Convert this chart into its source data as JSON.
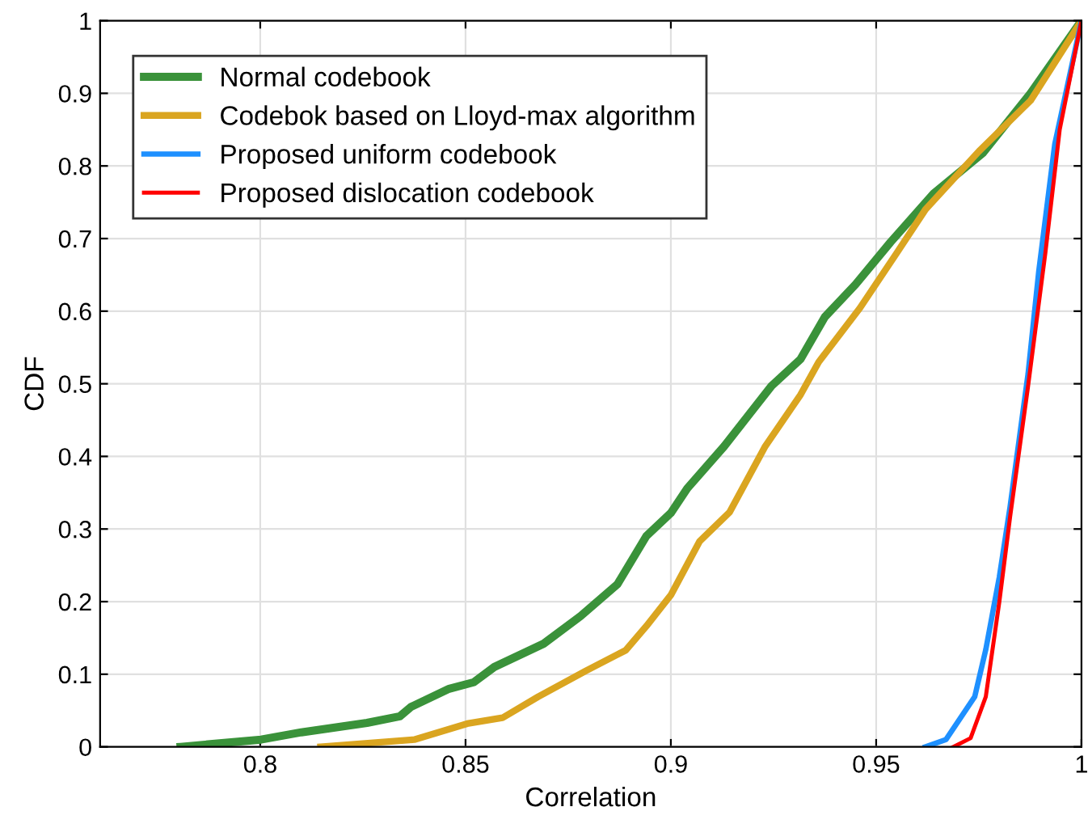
{
  "chart_data": {
    "type": "line",
    "xlabel": "Correlation",
    "ylabel": "CDF",
    "xlim": [
      0.761,
      1
    ],
    "xticks": [
      0.8,
      0.85,
      0.9,
      0.95,
      1
    ],
    "ylim": [
      0,
      1
    ],
    "yticks": [
      0,
      0.1,
      0.2,
      0.3,
      0.4,
      0.5,
      0.6,
      0.7,
      0.8,
      0.9,
      1
    ],
    "grid": true,
    "legend": "top left",
    "series": [
      {
        "name": "Normal codebook",
        "color": "#3a923a",
        "x": [
          0.7806,
          0.8002,
          0.81,
          0.826,
          0.834,
          0.8367,
          0.846,
          0.852,
          0.857,
          0.869,
          0.878,
          0.887,
          0.894,
          0.9,
          0.904,
          0.913,
          0.9245,
          0.9316,
          0.9375,
          0.945,
          0.9535,
          0.964,
          0.976,
          0.9876,
          1
        ],
        "values": [
          0,
          0.01,
          0.02,
          0.033,
          0.042,
          0.055,
          0.08,
          0.089,
          0.11,
          0.142,
          0.18,
          0.224,
          0.29,
          0.322,
          0.356,
          0.414,
          0.497,
          0.534,
          0.592,
          0.637,
          0.695,
          0.762,
          0.818,
          0.9,
          1
        ]
      },
      {
        "name": "Codebok based on Lloyd-max algorithm",
        "color": "#daa520",
        "x": [
          0.8147,
          0.8375,
          0.8504,
          0.859,
          0.8677,
          0.8794,
          0.889,
          0.894,
          0.9,
          0.907,
          0.9143,
          0.923,
          0.9316,
          0.936,
          0.946,
          0.955,
          0.962,
          0.975,
          0.9876,
          1
        ],
        "values": [
          0,
          0.01,
          0.032,
          0.04,
          0.069,
          0.105,
          0.133,
          0.166,
          0.209,
          0.283,
          0.323,
          0.414,
          0.485,
          0.53,
          0.604,
          0.68,
          0.74,
          0.82,
          0.89,
          1
        ]
      },
      {
        "name": "Proposed uniform codebook",
        "color": "#1e90ff",
        "x": [
          0.962,
          0.967,
          0.974,
          0.9767,
          0.98,
          0.9826,
          0.987,
          0.9896,
          0.9935,
          1
        ],
        "values": [
          0,
          0.01,
          0.069,
          0.134,
          0.234,
          0.33,
          0.514,
          0.655,
          0.83,
          1
        ]
      },
      {
        "name": "Proposed dislocation codebook",
        "color": "#ff0000",
        "x": [
          0.9688,
          0.973,
          0.9767,
          0.98,
          0.9826,
          0.987,
          0.9912,
          0.9947,
          1
        ],
        "values": [
          0,
          0.012,
          0.069,
          0.2,
          0.316,
          0.497,
          0.68,
          0.85,
          1
        ]
      }
    ]
  }
}
